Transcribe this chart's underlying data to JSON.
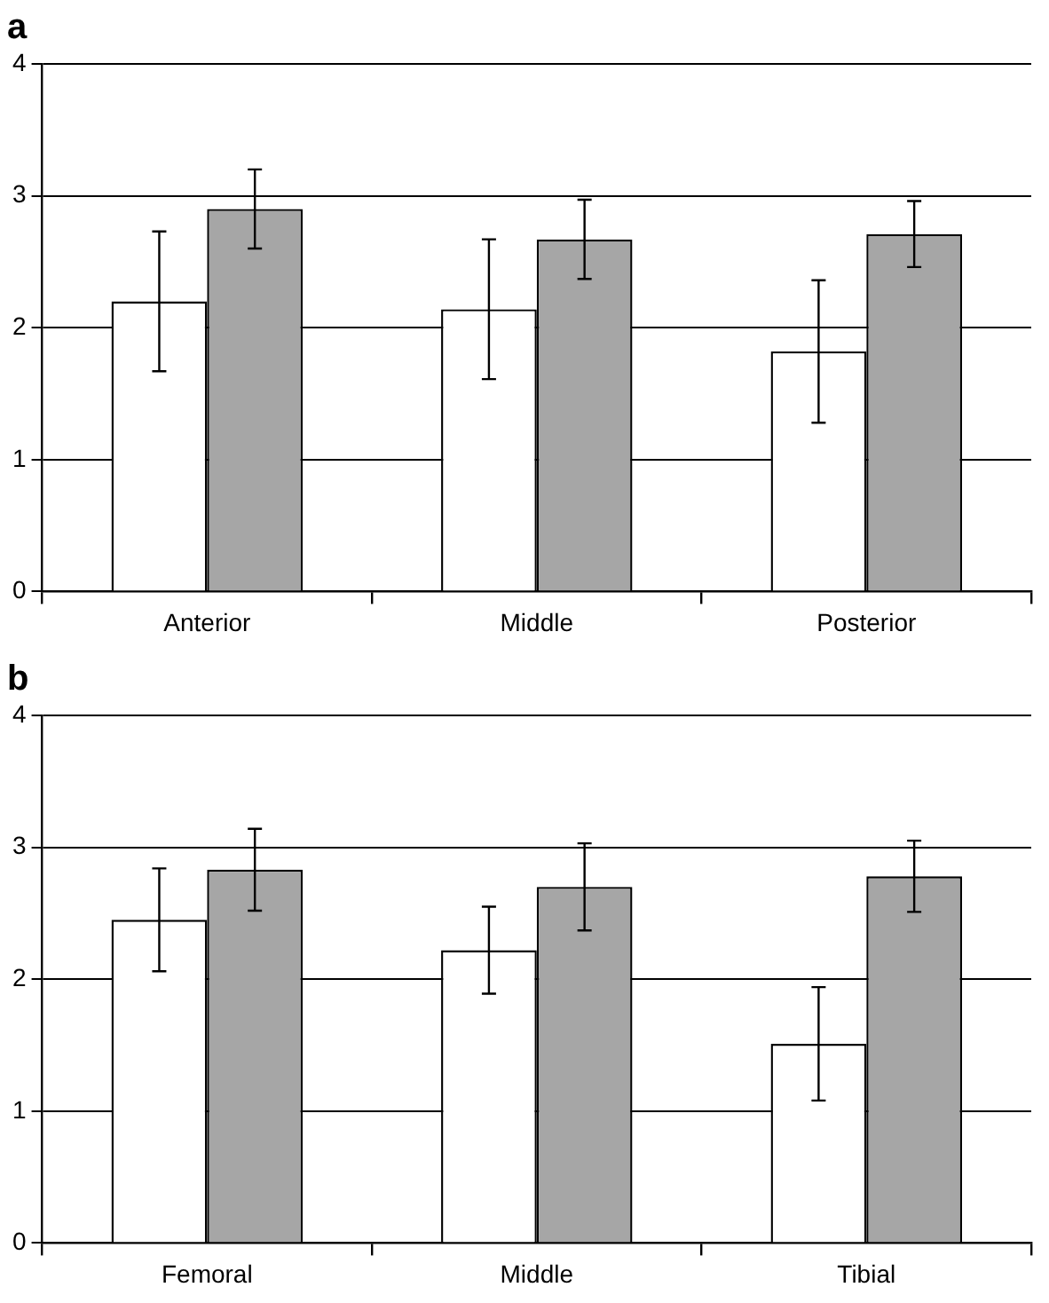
{
  "chart_data": [
    {
      "type": "bar",
      "title": "a",
      "categories": [
        "Anterior",
        "Middle",
        "Posterior"
      ],
      "series": [
        {
          "color": "#ffffff",
          "values": [
            2.2,
            2.14,
            1.82
          ],
          "errors": [
            0.53,
            0.53,
            0.54
          ]
        },
        {
          "color": "#a6a6a6",
          "values": [
            2.9,
            2.67,
            2.71
          ],
          "errors": [
            0.3,
            0.3,
            0.25
          ]
        }
      ],
      "ylim": [
        0,
        4
      ],
      "yticks": [
        0,
        1,
        2,
        3,
        4
      ],
      "grid": "y"
    },
    {
      "type": "bar",
      "title": "b",
      "categories": [
        "Femoral",
        "Middle",
        "Tibial"
      ],
      "series": [
        {
          "color": "#ffffff",
          "values": [
            2.45,
            2.22,
            1.51
          ],
          "errors": [
            0.39,
            0.33,
            0.43
          ]
        },
        {
          "color": "#a6a6a6",
          "values": [
            2.83,
            2.7,
            2.78
          ],
          "errors": [
            0.31,
            0.33,
            0.27
          ]
        }
      ],
      "ylim": [
        0,
        4
      ],
      "yticks": [
        0,
        1,
        2,
        3,
        4
      ],
      "grid": "y"
    }
  ]
}
